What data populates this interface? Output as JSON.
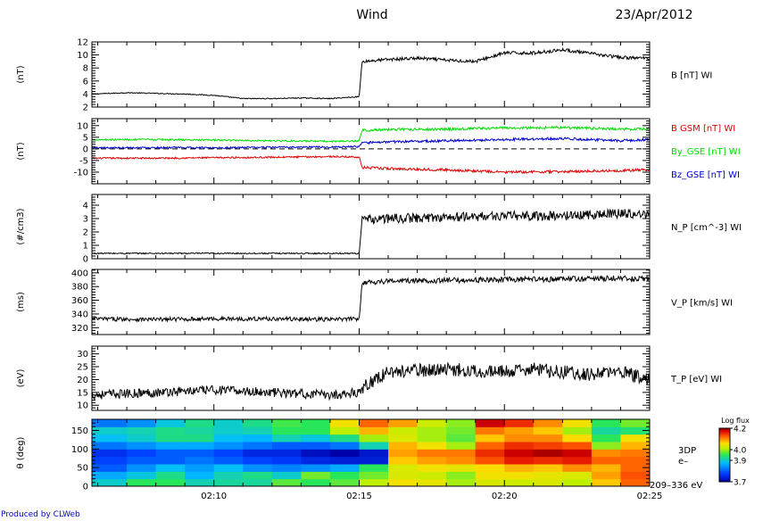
{
  "header": {
    "title": "Wind",
    "date": "23/Apr/2012"
  },
  "credit": "Produced by CLWeb",
  "colors": {
    "black": "#000000",
    "red": "#e00000",
    "green": "#00dd00",
    "blue": "#0000cc"
  },
  "chart_data": {
    "type": "line",
    "x_axis": {
      "ticks": [
        "02:10",
        "02:15",
        "02:20",
        "02:25"
      ],
      "tick_minutes": [
        10,
        15,
        20,
        25
      ],
      "range_minutes": [
        5.8,
        25
      ],
      "jump_minute": 15.1
    },
    "panels": [
      {
        "id": "b",
        "ylabel": "(nT)",
        "ylim": [
          2,
          12
        ],
        "yticks": [
          "2",
          "4",
          "6",
          "8",
          "10",
          "12"
        ],
        "ytick_values": [
          2,
          4,
          6,
          8,
          10,
          12
        ],
        "series": [
          {
            "name": "B [nT] WI",
            "color": "#000000",
            "x": [
              5.8,
              7,
              8,
              9,
              10,
              11,
              12,
              13,
              14,
              15,
              15.1,
              16,
              17,
              18,
              19,
              20,
              21,
              22,
              23,
              24,
              25
            ],
            "y": [
              4.0,
              4.2,
              4.1,
              4.0,
              3.8,
              3.3,
              3.3,
              3.4,
              3.3,
              3.6,
              9.0,
              9.3,
              9.5,
              9.2,
              9.0,
              10.3,
              10.3,
              10.8,
              10.2,
              9.6,
              9.5
            ]
          }
        ]
      },
      {
        "id": "bgse",
        "ylabel": "(nT)",
        "ylim": [
          -15,
          13
        ],
        "yticks": [
          "-10",
          "-5",
          "0",
          "5",
          "10"
        ],
        "ytick_values": [
          -10,
          -5,
          0,
          5,
          10
        ],
        "zero_line": true,
        "series": [
          {
            "name": "B GSM [nT] WI",
            "color": "#e00000",
            "x": [
              5.8,
              8,
              10,
              12,
              14,
              15,
              15.1,
              16,
              18,
              20,
              22,
              24,
              25
            ],
            "y": [
              -4.0,
              -4.0,
              -3.8,
              -3.6,
              -3.3,
              -3.5,
              -8.0,
              -8.5,
              -9.0,
              -10.0,
              -9.8,
              -9.3,
              -9.0
            ]
          },
          {
            "name": "By_GSE [nT] WI",
            "color": "#00dd00",
            "x": [
              5.8,
              8,
              10,
              12,
              14,
              15,
              15.1,
              16,
              18,
              20,
              22,
              24,
              25
            ],
            "y": [
              4.0,
              4.0,
              3.8,
              3.5,
              3.2,
              3.4,
              8.0,
              8.3,
              8.5,
              9.0,
              9.2,
              8.5,
              8.5
            ]
          },
          {
            "name": "Bz_GSE [nT] WI",
            "color": "#0000cc",
            "x": [
              5.8,
              8,
              10,
              12,
              14,
              15,
              15.1,
              16,
              18,
              20,
              22,
              24,
              25
            ],
            "y": [
              0.5,
              0.6,
              0.5,
              0.7,
              0.8,
              1.0,
              2.5,
              3.0,
              3.5,
              4.0,
              4.5,
              3.5,
              4.0
            ]
          }
        ]
      },
      {
        "id": "np",
        "ylabel": "(#/cm3)",
        "ylim": [
          0,
          4.8
        ],
        "yticks": [
          "0",
          "1",
          "2",
          "3",
          "4"
        ],
        "ytick_values": [
          0,
          1,
          2,
          3,
          4
        ],
        "zero_line": true,
        "series": [
          {
            "name": "N_P [cm^-3] WI",
            "color": "#000000",
            "x": [
              5.8,
              8,
              10,
              12,
              14,
              15,
              15.1,
              16,
              18,
              20,
              22,
              24,
              25
            ],
            "y": [
              0.4,
              0.4,
              0.4,
              0.4,
              0.4,
              0.4,
              2.9,
              3.0,
              3.1,
              3.2,
              3.2,
              3.4,
              3.3
            ]
          }
        ]
      },
      {
        "id": "vp",
        "ylabel": "(ms)",
        "ylim": [
          310,
          405
        ],
        "yticks": [
          "320",
          "340",
          "360",
          "380",
          "400"
        ],
        "ytick_values": [
          320,
          340,
          360,
          380,
          400
        ],
        "series": [
          {
            "name": "V_P [km/s] WI",
            "color": "#000000",
            "x": [
              5.8,
              8,
              10,
              12,
              14,
              15,
              15.1,
              16,
              18,
              20,
              22,
              24,
              25
            ],
            "y": [
              333,
              332,
              333,
              333,
              332,
              333,
              386,
              388,
              389,
              390,
              391,
              392,
              391
            ]
          }
        ]
      },
      {
        "id": "tp",
        "ylabel": "(eV)",
        "ylim": [
          8,
          33
        ],
        "yticks": [
          "10",
          "15",
          "20",
          "25",
          "30"
        ],
        "ytick_values": [
          10,
          15,
          20,
          25,
          30
        ],
        "series": [
          {
            "name": "T_P [eV] WI",
            "color": "#000000",
            "x": [
              5.8,
              8,
              10,
              12,
              14,
              15,
              15.1,
              16,
              18,
              20,
              21,
              23,
              24,
              25
            ],
            "y": [
              14,
              15,
              16,
              15,
              14,
              15,
              17,
              23,
              24,
              23,
              24,
              22,
              23,
              20
            ]
          }
        ]
      }
    ],
    "spectrogram": {
      "ylabel": "θ (deg)",
      "ylim": [
        0,
        180
      ],
      "yticks": [
        "0",
        "50",
        "100",
        "150"
      ],
      "ytick_values": [
        0,
        50,
        100,
        150
      ],
      "right_labels": [
        "3DP",
        "e–",
        "209–336 eV"
      ],
      "colorbar": {
        "title": "Log flux",
        "labels": [
          "4.2",
          "4.0",
          "3.9",
          "3.7"
        ],
        "values": [
          4.2,
          4.0,
          3.9,
          3.7
        ],
        "range": [
          3.7,
          4.2
        ]
      },
      "time_edges": [
        5.8,
        7.0,
        8.0,
        9.0,
        10.0,
        11.0,
        12.0,
        13.0,
        14.0,
        15.0,
        16.0,
        17.0,
        18.0,
        19.0,
        20.0,
        21.0,
        22.0,
        23.0,
        24.0,
        25.0
      ],
      "angle_edges": [
        0,
        20,
        40,
        60,
        80,
        100,
        120,
        140,
        160,
        180
      ],
      "values": [
        [
          3.9,
          3.95,
          3.95,
          3.91,
          3.92,
          3.92,
          3.97,
          3.95,
          3.97,
          4.01,
          4.05,
          4.04,
          4.0,
          4.03,
          4.02,
          4.03,
          4.01,
          4.07,
          4.12
        ],
        [
          3.86,
          3.89,
          3.93,
          3.87,
          3.91,
          3.93,
          3.9,
          3.98,
          3.95,
          3.98,
          4.03,
          4.02,
          3.99,
          4.05,
          4.05,
          4.04,
          4.03,
          4.09,
          4.13
        ],
        [
          3.8,
          3.84,
          3.88,
          3.85,
          3.88,
          3.84,
          3.83,
          3.84,
          3.86,
          3.95,
          4.03,
          4.05,
          4.04,
          4.06,
          4.08,
          4.07,
          4.1,
          4.08,
          4.12
        ],
        [
          3.78,
          3.8,
          3.8,
          3.82,
          3.8,
          3.78,
          3.77,
          3.75,
          3.74,
          3.74,
          4.07,
          4.09,
          4.1,
          4.13,
          4.16,
          4.15,
          4.16,
          4.12,
          4.12
        ],
        [
          3.76,
          3.78,
          3.8,
          3.8,
          3.78,
          3.75,
          3.75,
          3.72,
          3.7,
          3.73,
          4.09,
          4.11,
          4.11,
          4.15,
          4.18,
          4.19,
          4.18,
          4.1,
          4.11
        ],
        [
          3.82,
          3.84,
          3.86,
          3.86,
          3.84,
          3.82,
          3.8,
          3.8,
          3.82,
          3.91,
          4.08,
          4.05,
          4.0,
          4.12,
          4.15,
          4.14,
          4.13,
          3.99,
          4.08
        ],
        [
          3.88,
          3.9,
          3.93,
          3.93,
          3.88,
          3.87,
          3.91,
          3.89,
          3.93,
          4.0,
          4.03,
          4.0,
          3.97,
          4.07,
          4.1,
          4.1,
          4.06,
          3.95,
          4.05
        ],
        [
          3.9,
          3.91,
          3.93,
          3.92,
          3.9,
          3.91,
          3.95,
          3.95,
          4.01,
          4.08,
          4.02,
          4.0,
          3.98,
          4.11,
          4.09,
          4.07,
          4.0,
          3.92,
          3.94
        ],
        [
          3.82,
          3.84,
          3.89,
          3.93,
          3.9,
          3.93,
          3.96,
          3.95,
          4.05,
          4.12,
          4.09,
          4.02,
          3.99,
          4.18,
          4.15,
          4.1,
          4.05,
          3.95,
          3.98
        ]
      ]
    }
  }
}
